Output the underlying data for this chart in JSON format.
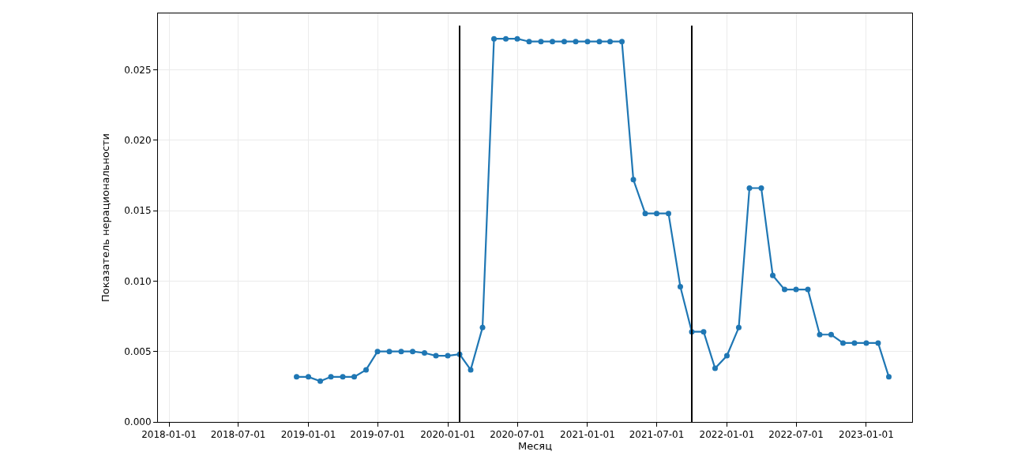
{
  "chart_data": {
    "type": "line",
    "xlabel": "Месяц",
    "ylabel": "Показатель нерациональности",
    "x": [
      "2018-12-01",
      "2019-01-01",
      "2019-02-01",
      "2019-03-01",
      "2019-04-01",
      "2019-05-01",
      "2019-06-01",
      "2019-07-01",
      "2019-08-01",
      "2019-09-01",
      "2019-10-01",
      "2019-11-01",
      "2019-12-01",
      "2020-01-01",
      "2020-02-01",
      "2020-03-01",
      "2020-04-01",
      "2020-05-01",
      "2020-06-01",
      "2020-07-01",
      "2020-08-01",
      "2020-09-01",
      "2020-10-01",
      "2020-11-01",
      "2020-12-01",
      "2021-01-01",
      "2021-02-01",
      "2021-03-01",
      "2021-04-01",
      "2021-05-01",
      "2021-06-01",
      "2021-07-01",
      "2021-08-01",
      "2021-09-01",
      "2021-10-01",
      "2021-11-01",
      "2021-12-01",
      "2022-01-01",
      "2022-02-01",
      "2022-03-01",
      "2022-04-01",
      "2022-05-01",
      "2022-06-01",
      "2022-07-01",
      "2022-08-01",
      "2022-09-01",
      "2022-10-01",
      "2022-11-01",
      "2022-12-01",
      "2023-01-01",
      "2023-02-01",
      "2023-03-01"
    ],
    "series": [
      {
        "color": "#1f77b4",
        "values": [
          0.0032,
          0.0032,
          0.0029,
          0.0032,
          0.0032,
          0.0032,
          0.0037,
          0.005,
          0.005,
          0.005,
          0.005,
          0.0049,
          0.0047,
          0.0047,
          0.0048,
          0.0037,
          0.0067,
          0.0272,
          0.0272,
          0.0272,
          0.027,
          0.027,
          0.027,
          0.027,
          0.027,
          0.027,
          0.027,
          0.027,
          0.027,
          0.0172,
          0.0148,
          0.0148,
          0.0148,
          0.0096,
          0.0064,
          0.0064,
          0.0038,
          0.0047,
          0.0067,
          0.0166,
          0.0166,
          0.0104,
          0.0094,
          0.0094,
          0.0094,
          0.0062,
          0.0062,
          0.0056,
          0.0056,
          0.0056,
          0.0056,
          0.0032
        ]
      }
    ],
    "xlim": [
      "2017-12-03",
      "2023-05-01"
    ],
    "xticks": [
      {
        "value": "2018-01-01",
        "label": "2018-01-01"
      },
      {
        "value": "2018-07-01",
        "label": "2018-07-01"
      },
      {
        "value": "2019-01-01",
        "label": "2019-01-01"
      },
      {
        "value": "2019-07-01",
        "label": "2019-07-01"
      },
      {
        "value": "2020-01-01",
        "label": "2020-01-01"
      },
      {
        "value": "2020-07-01",
        "label": "2020-07-01"
      },
      {
        "value": "2021-01-01",
        "label": "2021-01-01"
      },
      {
        "value": "2021-07-01",
        "label": "2021-07-01"
      },
      {
        "value": "2022-01-01",
        "label": "2022-01-01"
      },
      {
        "value": "2022-07-01",
        "label": "2022-07-01"
      },
      {
        "value": "2023-01-01",
        "label": "2023-01-01"
      }
    ],
    "ylim": [
      0,
      0.029
    ],
    "yticks": [
      {
        "value": 0,
        "label": "0.000"
      },
      {
        "value": 0.005,
        "label": "0.005"
      },
      {
        "value": 0.01,
        "label": "0.010"
      },
      {
        "value": 0.015,
        "label": "0.015"
      },
      {
        "value": 0.02,
        "label": "0.020"
      },
      {
        "value": 0.025,
        "label": "0.025"
      }
    ],
    "ref_lines": [
      {
        "axis": "x",
        "value": "2020-02-01",
        "color": "#000000"
      },
      {
        "axis": "x",
        "value": "2021-10-01",
        "color": "#000000"
      }
    ],
    "grid": true,
    "marker": "circle",
    "line_style": "solid"
  }
}
